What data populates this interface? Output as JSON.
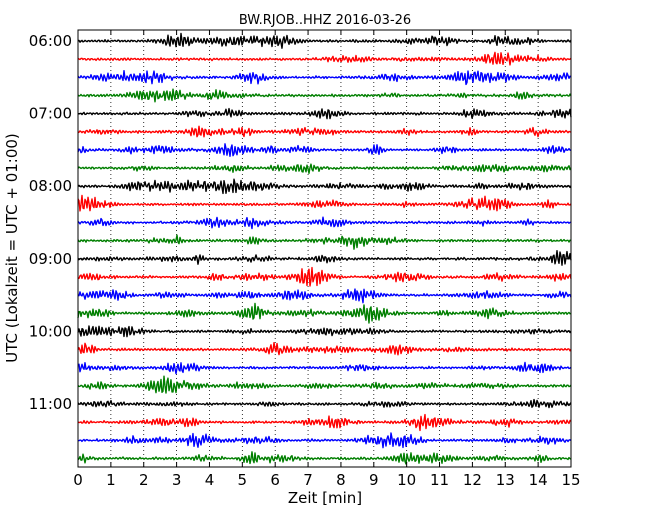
{
  "chart_data": {
    "type": "line",
    "title": "BW.RJOB..HHZ 2016-03-26",
    "xlabel": "Zeit  [min]",
    "ylabel": "UTC (Lokalzeit = UTC + 01:00)",
    "xlim": [
      0,
      15
    ],
    "xticks": [
      "0",
      "1",
      "2",
      "3",
      "4",
      "5",
      "6",
      "7",
      "8",
      "9",
      "10",
      "11",
      "12",
      "13",
      "14",
      "15"
    ],
    "yticks": [
      "06:00",
      "07:00",
      "08:00",
      "09:00",
      "10:00",
      "11:00"
    ],
    "traces_per_hour": 4,
    "trace_count": 24,
    "trace_colors": [
      "#000000",
      "#ff0000",
      "#0000ff",
      "#007f00"
    ],
    "grid": "vertical dotted at each minute"
  }
}
